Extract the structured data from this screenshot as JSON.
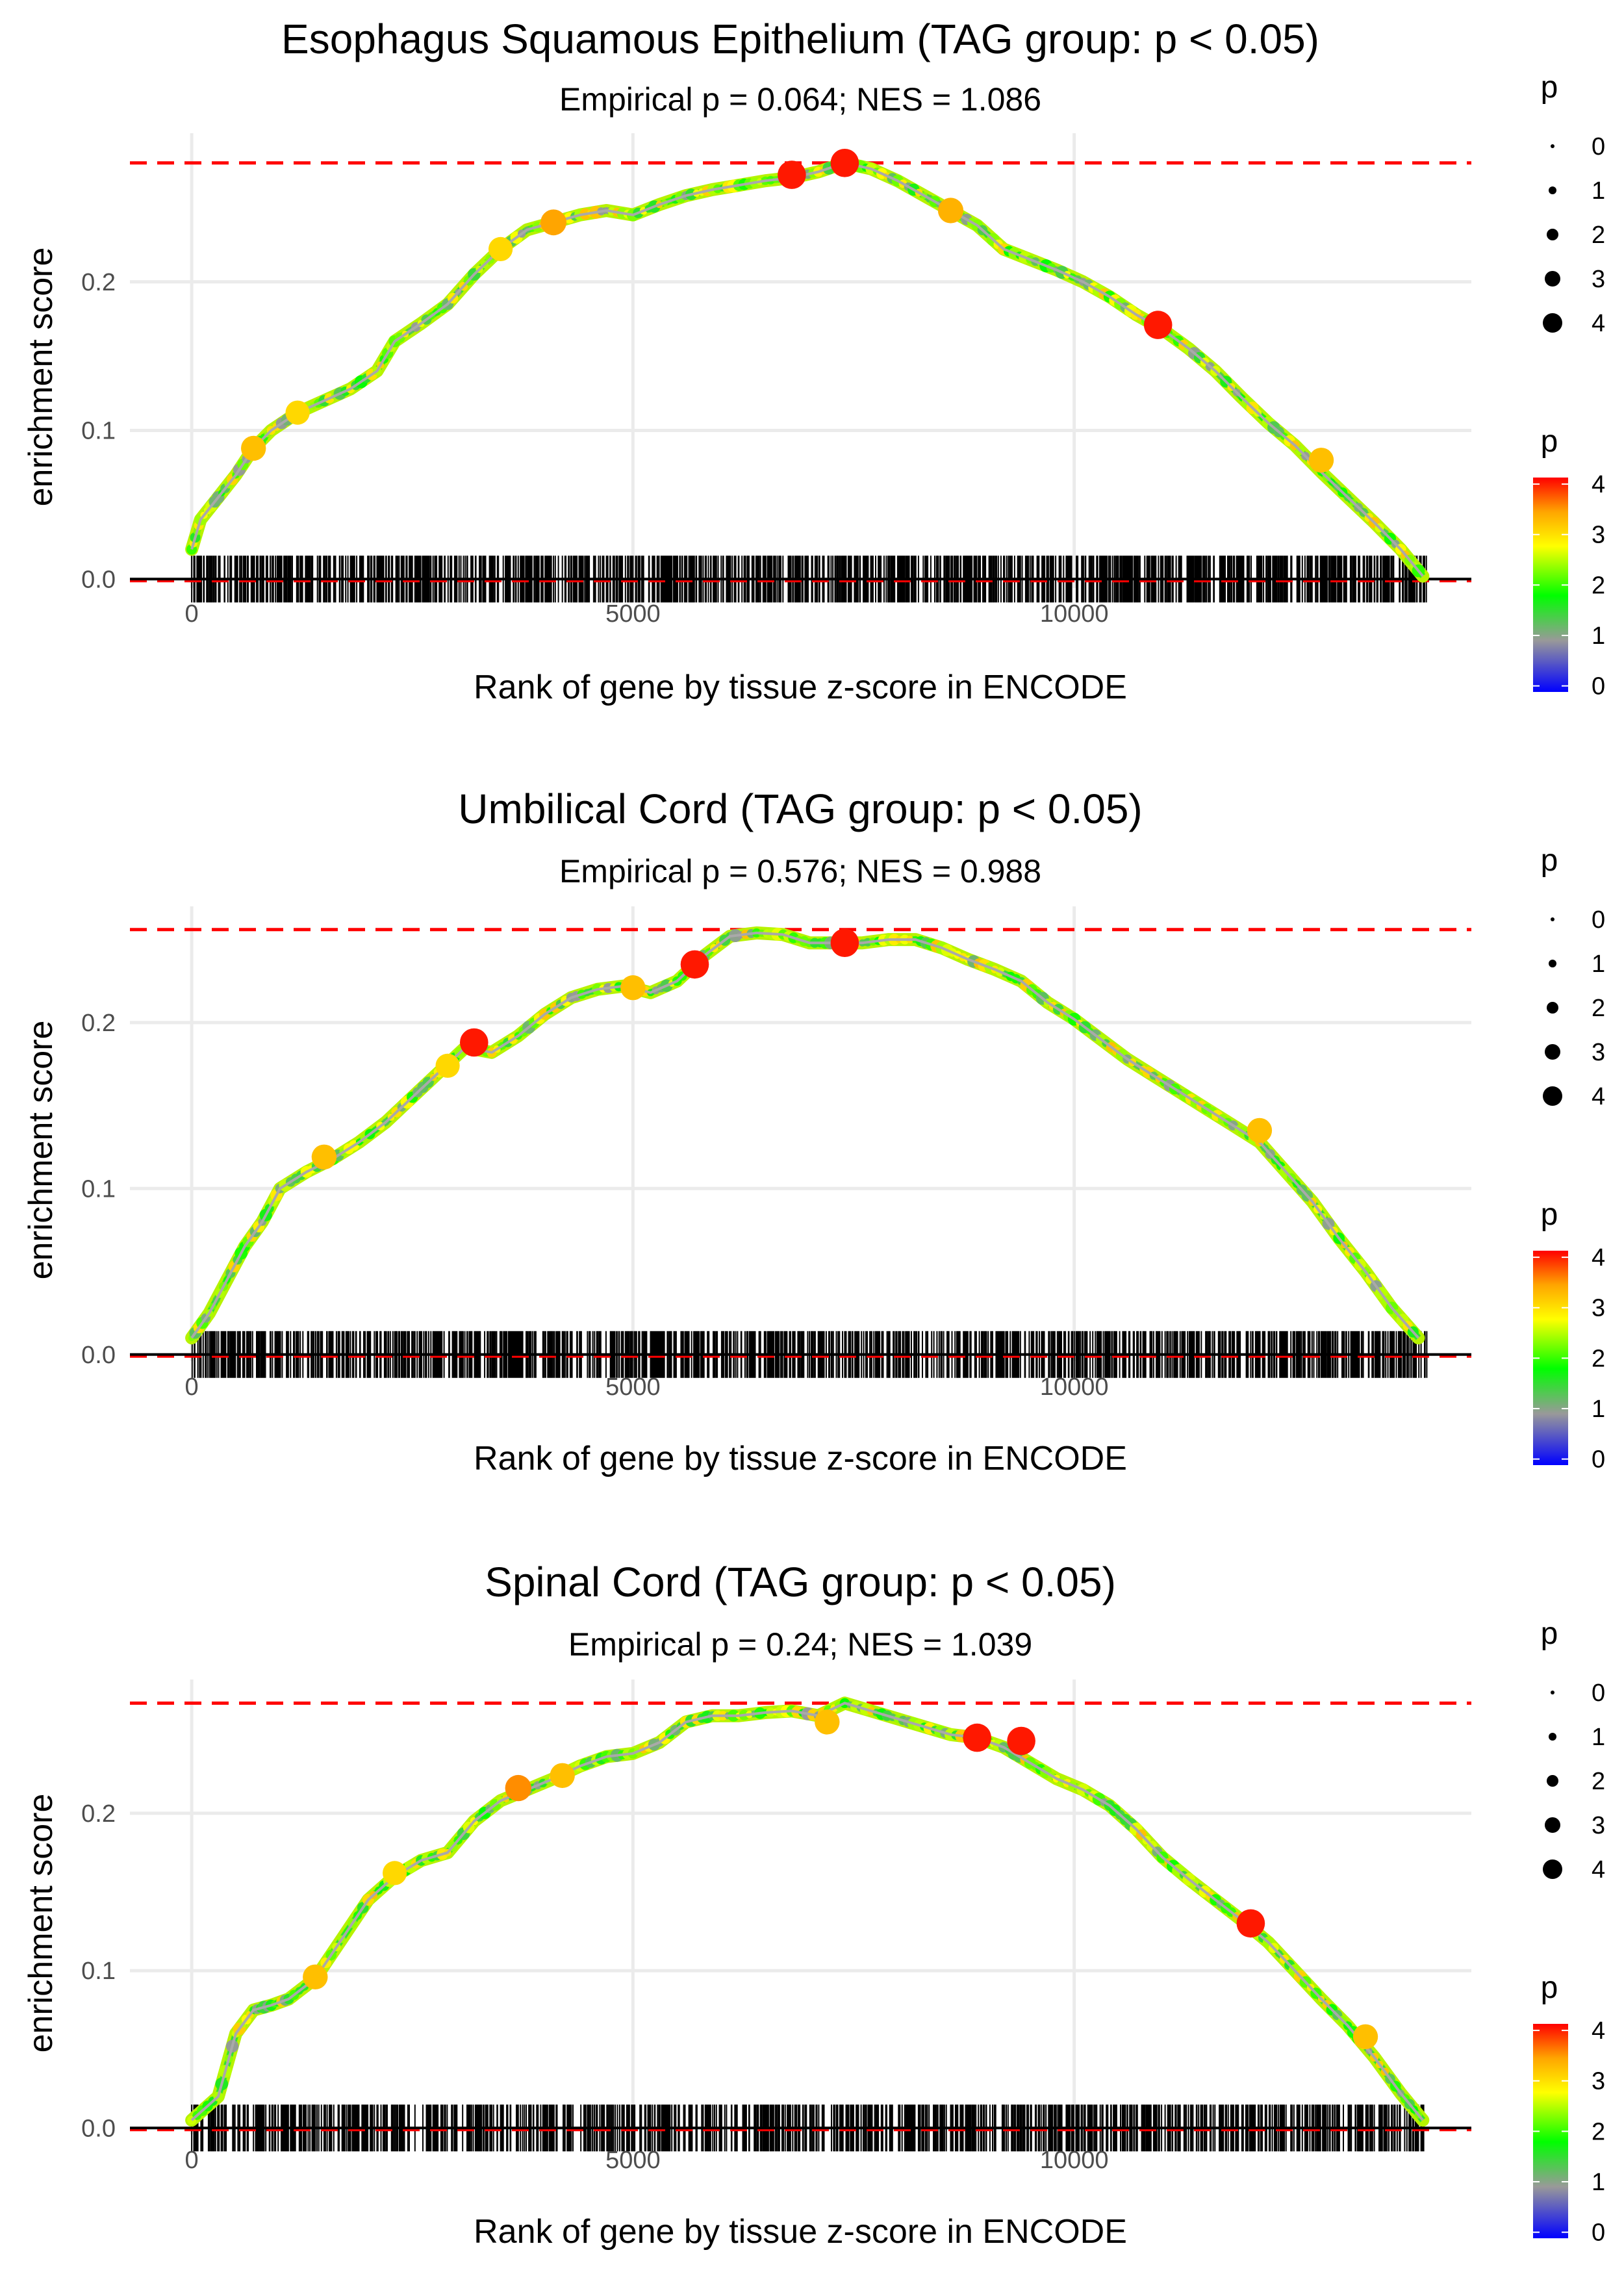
{
  "chart_data": [
    {
      "type": "line",
      "title": "Esophagus Squamous Epithelium (TAG group: p < 0.05)",
      "subtitle": "Empirical p = 0.064; NES = 1.086",
      "xlabel": "Rank of gene by tissue z-score in ENCODE",
      "ylabel": "enrichment score",
      "xlim": [
        -700,
        14500
      ],
      "ylim": [
        -0.006,
        0.3
      ],
      "xticks": [
        0,
        5000,
        10000
      ],
      "xtick_labels": [
        "0",
        "5000",
        "10000"
      ],
      "yticks": [
        0.0,
        0.1,
        0.2
      ],
      "ytick_labels": [
        "0.0",
        "0.1",
        "0.2"
      ],
      "max_es": 0.28,
      "n_genes": 14000,
      "curve": {
        "x": [
          0,
          100,
          300,
          500,
          700,
          900,
          1200,
          1500,
          1800,
          2100,
          2300,
          2600,
          2900,
          3200,
          3500,
          3800,
          4100,
          4400,
          4700,
          5000,
          5300,
          5600,
          5900,
          6200,
          6500,
          6800,
          7100,
          7400,
          7700,
          8000,
          8300,
          8600,
          8900,
          9200,
          9500,
          9800,
          10100,
          10400,
          10700,
          11000,
          11300,
          11600,
          11900,
          12200,
          12500,
          12800,
          13100,
          13400,
          13700,
          13950
        ],
        "y": [
          0.02,
          0.04,
          0.055,
          0.07,
          0.088,
          0.1,
          0.112,
          0.12,
          0.128,
          0.14,
          0.16,
          0.172,
          0.185,
          0.205,
          0.222,
          0.235,
          0.24,
          0.245,
          0.248,
          0.245,
          0.252,
          0.258,
          0.262,
          0.265,
          0.268,
          0.27,
          0.274,
          0.28,
          0.276,
          0.268,
          0.258,
          0.248,
          0.238,
          0.222,
          0.215,
          0.208,
          0.2,
          0.19,
          0.178,
          0.168,
          0.155,
          0.14,
          0.122,
          0.105,
          0.09,
          0.072,
          0.055,
          0.038,
          0.02,
          0.002
        ]
      },
      "highlights": [
        {
          "x": 700,
          "y": 0.088,
          "p": 3.2
        },
        {
          "x": 1200,
          "y": 0.112,
          "p": 3.0
        },
        {
          "x": 3500,
          "y": 0.222,
          "p": 3.0
        },
        {
          "x": 4100,
          "y": 0.24,
          "p": 3.4
        },
        {
          "x": 6800,
          "y": 0.272,
          "p": 4.0
        },
        {
          "x": 7400,
          "y": 0.28,
          "p": 4.0
        },
        {
          "x": 8600,
          "y": 0.248,
          "p": 3.3
        },
        {
          "x": 10950,
          "y": 0.171,
          "p": 4.0
        },
        {
          "x": 12800,
          "y": 0.08,
          "p": 3.2
        }
      ],
      "legend_size": {
        "title": "p",
        "labels": [
          "0",
          "1",
          "2",
          "3",
          "4"
        ]
      },
      "legend_color": {
        "title": "p",
        "labels": [
          "4",
          "3",
          "2",
          "1",
          "0"
        ],
        "colors": [
          "#0000ff",
          "#999999",
          "#00ff00",
          "#ffff00",
          "#ffa500",
          "#ff0000"
        ]
      }
    },
    {
      "type": "line",
      "title": "Umbilical Cord (TAG group: p < 0.05)",
      "subtitle": "Empirical p = 0.576; NES = 0.988",
      "xlabel": "Rank of gene by tissue z-score in ENCODE",
      "ylabel": "enrichment score",
      "xlim": [
        -700,
        14500
      ],
      "ylim": [
        -0.004,
        0.27
      ],
      "xticks": [
        0,
        5000,
        10000
      ],
      "xtick_labels": [
        "0",
        "5000",
        "10000"
      ],
      "yticks": [
        0.0,
        0.1,
        0.2
      ],
      "ytick_labels": [
        "0.0",
        "0.1",
        "0.2"
      ],
      "max_es": 0.256,
      "n_genes": 14000,
      "curve": {
        "x": [
          0,
          200,
          400,
          600,
          800,
          1000,
          1300,
          1600,
          1900,
          2200,
          2500,
          2800,
          3100,
          3400,
          3700,
          4000,
          4300,
          4600,
          4900,
          5200,
          5500,
          5800,
          6100,
          6400,
          6700,
          7000,
          7300,
          7600,
          7900,
          8200,
          8500,
          8800,
          9100,
          9400,
          9700,
          10000,
          10300,
          10600,
          10900,
          11200,
          11500,
          11800,
          12100,
          12400,
          12700,
          13000,
          13300,
          13600,
          13900
        ],
        "y": [
          0.01,
          0.025,
          0.045,
          0.065,
          0.08,
          0.1,
          0.11,
          0.118,
          0.128,
          0.14,
          0.155,
          0.17,
          0.185,
          0.182,
          0.192,
          0.205,
          0.215,
          0.22,
          0.222,
          0.218,
          0.225,
          0.24,
          0.252,
          0.254,
          0.253,
          0.248,
          0.248,
          0.248,
          0.25,
          0.25,
          0.245,
          0.238,
          0.232,
          0.225,
          0.212,
          0.202,
          0.19,
          0.178,
          0.168,
          0.158,
          0.148,
          0.138,
          0.128,
          0.11,
          0.092,
          0.07,
          0.05,
          0.028,
          0.01
        ]
      },
      "highlights": [
        {
          "x": 1500,
          "y": 0.119,
          "p": 3.2
        },
        {
          "x": 3200,
          "y": 0.188,
          "p": 4.0
        },
        {
          "x": 2900,
          "y": 0.174,
          "p": 3.0
        },
        {
          "x": 5000,
          "y": 0.221,
          "p": 3.2
        },
        {
          "x": 5700,
          "y": 0.235,
          "p": 4.0
        },
        {
          "x": 7400,
          "y": 0.248,
          "p": 4.0
        },
        {
          "x": 12100,
          "y": 0.135,
          "p": 3.2
        }
      ],
      "legend_size": {
        "title": "p",
        "labels": [
          "0",
          "1",
          "2",
          "3",
          "4"
        ]
      },
      "legend_color": {
        "title": "p",
        "labels": [
          "4",
          "3",
          "2",
          "1",
          "0"
        ],
        "colors": [
          "#0000ff",
          "#999999",
          "#00ff00",
          "#ffff00",
          "#ffa500",
          "#ff0000"
        ]
      }
    },
    {
      "type": "line",
      "title": "Spinal Cord (TAG group: p < 0.05)",
      "subtitle": "Empirical p = 0.24; NES = 1.039",
      "xlabel": "Rank of gene by tissue z-score in ENCODE",
      "ylabel": "enrichment score",
      "xlim": [
        -700,
        14500
      ],
      "ylim": [
        -0.004,
        0.285
      ],
      "xticks": [
        0,
        5000,
        10000
      ],
      "xtick_labels": [
        "0",
        "5000",
        "10000"
      ],
      "yticks": [
        0.0,
        0.1,
        0.2
      ],
      "ytick_labels": [
        "0.0",
        "0.1",
        "0.2"
      ],
      "max_es": 0.27,
      "n_genes": 14000,
      "curve": {
        "x": [
          0,
          300,
          500,
          700,
          900,
          1100,
          1400,
          1700,
          2000,
          2300,
          2600,
          2900,
          3200,
          3500,
          3800,
          4100,
          4400,
          4700,
          5000,
          5300,
          5600,
          5900,
          6200,
          6500,
          6800,
          7100,
          7400,
          7700,
          8000,
          8300,
          8600,
          8900,
          9200,
          9500,
          9800,
          10100,
          10400,
          10700,
          11000,
          11300,
          11600,
          11900,
          12200,
          12500,
          12800,
          13100,
          13400,
          13700,
          13950
        ],
        "y": [
          0.005,
          0.02,
          0.06,
          0.075,
          0.078,
          0.082,
          0.095,
          0.12,
          0.145,
          0.16,
          0.17,
          0.175,
          0.195,
          0.208,
          0.215,
          0.222,
          0.23,
          0.236,
          0.238,
          0.245,
          0.258,
          0.262,
          0.262,
          0.264,
          0.265,
          0.262,
          0.27,
          0.265,
          0.26,
          0.255,
          0.25,
          0.248,
          0.242,
          0.232,
          0.222,
          0.215,
          0.205,
          0.19,
          0.172,
          0.158,
          0.145,
          0.132,
          0.118,
          0.1,
          0.082,
          0.065,
          0.045,
          0.022,
          0.005
        ]
      },
      "highlights": [
        {
          "x": 1400,
          "y": 0.096,
          "p": 3.2
        },
        {
          "x": 2300,
          "y": 0.162,
          "p": 3.0
        },
        {
          "x": 3700,
          "y": 0.216,
          "p": 3.5
        },
        {
          "x": 4200,
          "y": 0.224,
          "p": 3.2
        },
        {
          "x": 7200,
          "y": 0.258,
          "p": 3.2
        },
        {
          "x": 8900,
          "y": 0.248,
          "p": 4.0
        },
        {
          "x": 9400,
          "y": 0.246,
          "p": 4.0
        },
        {
          "x": 12000,
          "y": 0.13,
          "p": 4.0
        },
        {
          "x": 13300,
          "y": 0.058,
          "p": 3.2
        }
      ],
      "legend_size": {
        "title": "p",
        "labels": [
          "0",
          "1",
          "2",
          "3",
          "4"
        ]
      },
      "legend_color": {
        "title": "p",
        "labels": [
          "4",
          "3",
          "2",
          "1",
          "0"
        ],
        "colors": [
          "#0000ff",
          "#999999",
          "#00ff00",
          "#ffff00",
          "#ffa500",
          "#ff0000"
        ]
      }
    }
  ]
}
